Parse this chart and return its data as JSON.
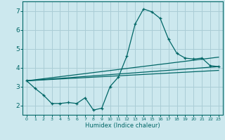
{
  "xlabel": "Humidex (Indice chaleur)",
  "bg_color": "#cce8ee",
  "grid_color": "#aacdd6",
  "line_color": "#006666",
  "xlim": [
    -0.5,
    23.5
  ],
  "ylim": [
    1.5,
    7.5
  ],
  "yticks": [
    2,
    3,
    4,
    5,
    6,
    7
  ],
  "xticks": [
    0,
    1,
    2,
    3,
    4,
    5,
    6,
    7,
    8,
    9,
    10,
    11,
    12,
    13,
    14,
    15,
    16,
    17,
    18,
    19,
    20,
    21,
    22,
    23
  ],
  "main_x": [
    0,
    1,
    2,
    3,
    4,
    5,
    6,
    7,
    8,
    9,
    10,
    11,
    12,
    13,
    14,
    15,
    16,
    17,
    18,
    19,
    20,
    21,
    22,
    23
  ],
  "main_y": [
    3.3,
    2.9,
    2.55,
    2.1,
    2.1,
    2.15,
    2.1,
    2.4,
    1.75,
    1.85,
    3.0,
    3.5,
    4.6,
    6.3,
    7.1,
    6.95,
    6.6,
    5.5,
    4.75,
    4.5,
    4.45,
    4.5,
    4.1,
    4.05
  ],
  "line2_x": [
    0,
    23
  ],
  "line2_y": [
    3.3,
    4.05
  ],
  "line3_x": [
    0,
    23
  ],
  "line3_y": [
    3.3,
    4.55
  ],
  "line4_x": [
    0,
    23
  ],
  "line4_y": [
    3.3,
    3.85
  ]
}
